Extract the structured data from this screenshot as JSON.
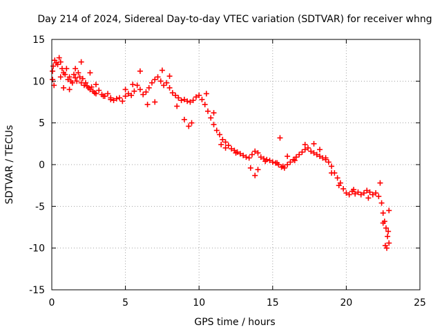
{
  "chart_data": {
    "type": "scatter",
    "title": "Day 214 of 2024, Sidereal Day-to-day VTEC variation (SDTVAR) for receiver whng",
    "xlabel": "GPS time / hours",
    "ylabel": "SDTVAR / TECUs",
    "xlim": [
      0,
      25
    ],
    "ylim": [
      -15,
      15
    ],
    "xticks": [
      0,
      5,
      10,
      15,
      20,
      25
    ],
    "yticks": [
      -15,
      -10,
      -5,
      0,
      5,
      10,
      15
    ],
    "xtick_labels": [
      "0",
      "5",
      "10",
      "15",
      "20",
      "25"
    ],
    "ytick_labels": [
      "-15",
      "-10",
      "-5",
      "0",
      "5",
      "10",
      "15"
    ],
    "grid": true,
    "marker": "+",
    "series": [
      {
        "name": "SDTVAR",
        "color": "#ff0000",
        "x": [
          0.05,
          0.1,
          0.2,
          0.3,
          0.4,
          0.5,
          0.6,
          0.7,
          0.8,
          0.9,
          1.0,
          1.1,
          1.2,
          1.3,
          1.4,
          1.5,
          1.6,
          1.7,
          1.8,
          1.9,
          2.0,
          2.1,
          2.2,
          2.3,
          2.4,
          2.5,
          2.6,
          2.7,
          2.8,
          2.9,
          3.0,
          3.2,
          3.4,
          3.6,
          3.8,
          4.0,
          4.2,
          4.4,
          4.6,
          4.8,
          5.0,
          5.2,
          5.4,
          5.6,
          5.8,
          6.0,
          6.2,
          6.4,
          6.6,
          6.8,
          7.0,
          7.2,
          7.4,
          7.6,
          7.8,
          8.0,
          8.2,
          8.4,
          8.6,
          8.8,
          9.0,
          9.2,
          9.4,
          9.6,
          9.8,
          10.0,
          10.2,
          10.4,
          10.6,
          10.8,
          11.0,
          11.2,
          11.4,
          11.6,
          11.8,
          12.0,
          12.2,
          12.4,
          12.6,
          12.8,
          13.0,
          13.2,
          13.4,
          13.6,
          13.8,
          14.0,
          14.2,
          14.4,
          14.6,
          14.8,
          15.0,
          15.2,
          15.4,
          15.6,
          15.8,
          16.0,
          16.2,
          16.4,
          16.6,
          16.8,
          17.0,
          17.2,
          17.4,
          17.6,
          17.8,
          18.0,
          18.2,
          18.4,
          18.6,
          18.8,
          19.0,
          19.2,
          19.4,
          19.6,
          19.8,
          20.0,
          20.2,
          20.4,
          20.6,
          20.8,
          21.0,
          21.2,
          21.4,
          21.6,
          21.8,
          22.0,
          22.2,
          22.4,
          22.5,
          22.6,
          22.7,
          22.8,
          22.9,
          0.05,
          0.15,
          0.6,
          0.8,
          1.2,
          1.6,
          2.0,
          2.6,
          3.0,
          3.5,
          4.0,
          5.0,
          5.5,
          6.0,
          6.5,
          7.0,
          7.5,
          8.0,
          8.5,
          9.0,
          9.3,
          9.5,
          10.5,
          11.0,
          11.5,
          11.8,
          12.5,
          13.5,
          13.8,
          14.0,
          14.5,
          15.3,
          15.5,
          15.7,
          16.0,
          16.5,
          17.2,
          17.8,
          18.2,
          18.6,
          19.0,
          19.5,
          20.5,
          21.5,
          22.3,
          22.5,
          22.65,
          22.75,
          22.85,
          22.9
        ],
        "y": [
          11.2,
          11.8,
          12.5,
          12.2,
          12.0,
          12.8,
          12.3,
          11.5,
          11.0,
          10.8,
          11.5,
          10.2,
          10.5,
          10.0,
          9.8,
          10.8,
          10.4,
          10.0,
          11.0,
          10.5,
          9.8,
          10.3,
          9.5,
          9.8,
          9.4,
          9.2,
          9.0,
          9.3,
          8.8,
          8.6,
          8.5,
          8.9,
          8.4,
          8.2,
          8.5,
          8.0,
          7.7,
          7.9,
          8.0,
          7.6,
          8.2,
          8.5,
          8.3,
          8.8,
          9.5,
          9.0,
          8.4,
          8.7,
          9.2,
          9.8,
          10.2,
          10.5,
          10.0,
          9.5,
          9.8,
          9.2,
          8.6,
          8.3,
          8.0,
          7.7,
          7.8,
          7.6,
          7.5,
          7.7,
          8.1,
          8.3,
          7.8,
          7.2,
          6.4,
          5.6,
          4.8,
          4.1,
          3.6,
          3.0,
          2.7,
          2.3,
          1.9,
          1.7,
          1.5,
          1.3,
          1.1,
          0.9,
          0.8,
          1.2,
          1.6,
          1.4,
          0.9,
          0.7,
          0.6,
          0.5,
          0.3,
          0.2,
          0.0,
          -0.3,
          -0.4,
          0.0,
          0.3,
          0.6,
          0.9,
          1.2,
          1.5,
          1.8,
          2.0,
          1.6,
          1.4,
          1.2,
          1.0,
          0.8,
          0.6,
          0.3,
          -0.2,
          -1.0,
          -1.6,
          -2.2,
          -2.9,
          -3.4,
          -3.6,
          -3.2,
          -3.5,
          -3.3,
          -3.6,
          -3.4,
          -3.1,
          -3.3,
          -3.6,
          -3.4,
          -3.8,
          -4.6,
          -5.8,
          -6.8,
          -7.6,
          -8.6,
          -9.4,
          10.2,
          9.5,
          10.5,
          9.2,
          9.0,
          11.5,
          12.3,
          11.0,
          9.6,
          8.2,
          7.8,
          9.0,
          9.6,
          11.2,
          7.2,
          7.5,
          11.3,
          10.6,
          7.0,
          5.4,
          4.6,
          5.0,
          8.5,
          6.2,
          2.4,
          2.0,
          1.4,
          -0.4,
          -1.3,
          -0.6,
          0.4,
          0.2,
          3.2,
          -0.2,
          1.0,
          0.5,
          2.4,
          2.5,
          1.8,
          0.8,
          -1.0,
          -2.5,
          -3.0,
          -4.0,
          -2.2,
          -7.0,
          -9.7,
          -10.0,
          -8.0,
          -5.5
        ]
      }
    ]
  }
}
